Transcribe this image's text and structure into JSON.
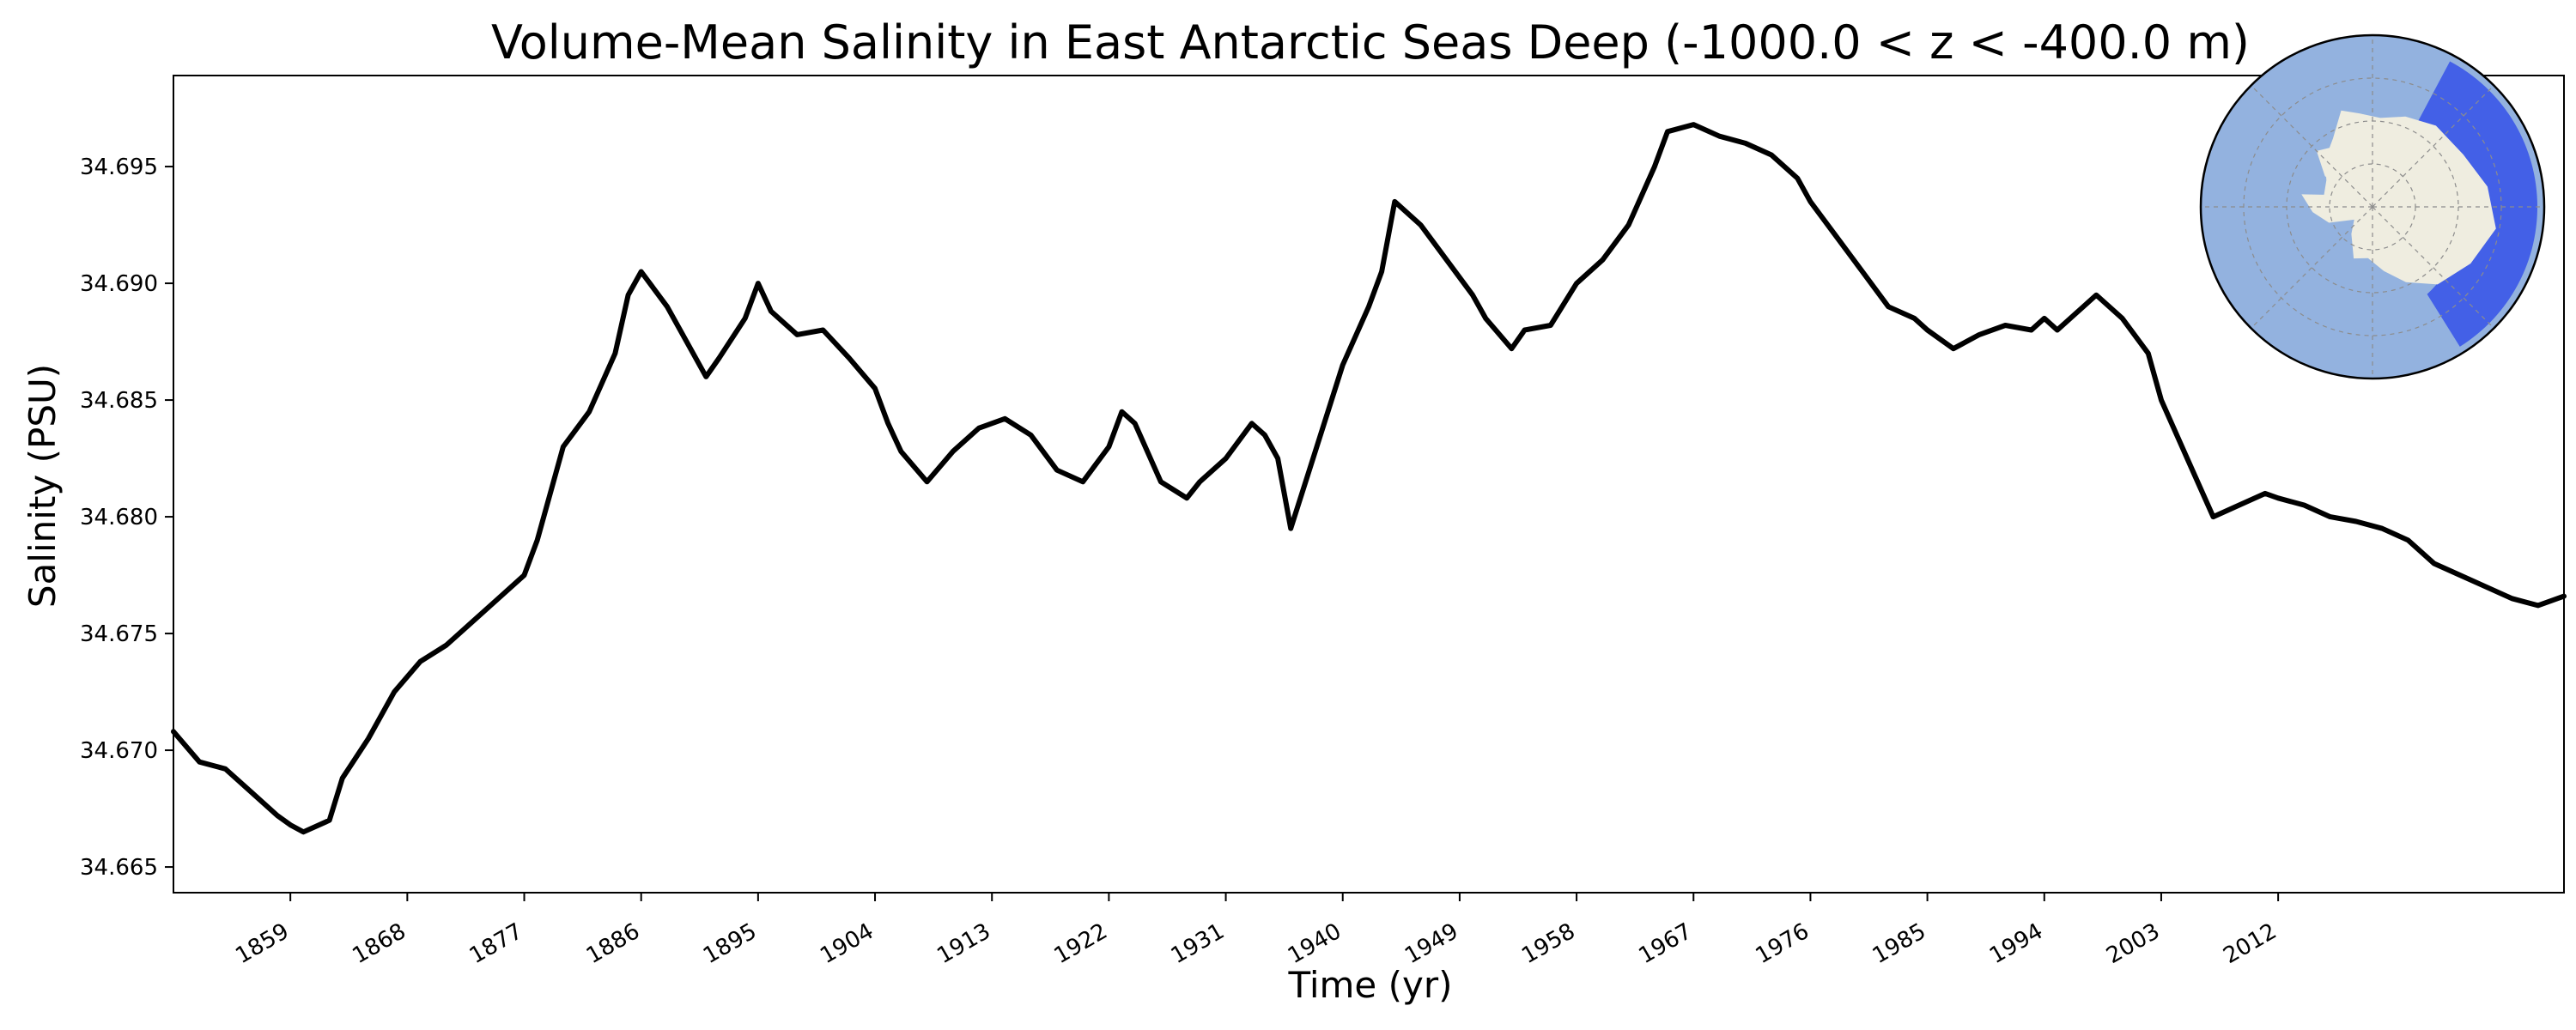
{
  "chart_data": {
    "type": "line",
    "title": "Volume-Mean Salinity in East Antarctic Seas Deep (-1000.0 < z < -400.0 m)",
    "xlabel": "Time (yr)",
    "ylabel": "Salinity (PSU)",
    "xlim": [
      1850,
      2034
    ],
    "ylim": [
      34.6639,
      34.6989
    ],
    "x_ticks": [
      1859,
      1868,
      1877,
      1886,
      1895,
      1904,
      1913,
      1922,
      1931,
      1940,
      1949,
      1958,
      1967,
      1976,
      1985,
      1994,
      2003,
      2012
    ],
    "y_ticks": [
      34.665,
      34.67,
      34.675,
      34.68,
      34.685,
      34.69,
      34.695
    ],
    "y_tick_labels": [
      "34.665",
      "34.670",
      "34.675",
      "34.680",
      "34.685",
      "34.690",
      "34.695"
    ],
    "grid": false,
    "legend": "none",
    "series": [
      {
        "color": "#000000",
        "x": [
          1850,
          1852,
          1854,
          1856,
          1858,
          1859,
          1860,
          1862,
          1863,
          1865,
          1867,
          1869,
          1871,
          1873,
          1875,
          1877,
          1878,
          1880,
          1882,
          1884,
          1885,
          1886,
          1888,
          1890,
          1891,
          1892,
          1894,
          1895,
          1896,
          1898,
          1900,
          1902,
          1904,
          1905,
          1906,
          1908,
          1910,
          1912,
          1914,
          1916,
          1918,
          1920,
          1922,
          1923,
          1924,
          1926,
          1928,
          1929,
          1931,
          1933,
          1934,
          1935,
          1936,
          1938,
          1940,
          1942,
          1943,
          1944,
          1946,
          1948,
          1950,
          1951,
          1953,
          1954,
          1956,
          1958,
          1960,
          1962,
          1964,
          1965,
          1967,
          1969,
          1971,
          1973,
          1975,
          1976,
          1978,
          1980,
          1982,
          1984,
          1985,
          1987,
          1989,
          1991,
          1993,
          1994,
          1995,
          1997,
          1998,
          2000,
          2002,
          2003,
          2005,
          2007,
          2009,
          2011,
          2012,
          2014,
          2016,
          2018,
          2020,
          2022,
          2024,
          2026,
          2028,
          2030,
          2032,
          2034
        ],
        "y": [
          34.6708,
          34.6695,
          34.6692,
          34.6682,
          34.6672,
          34.6668,
          34.6665,
          34.667,
          34.6688,
          34.6705,
          34.6725,
          34.6738,
          34.6745,
          34.6755,
          34.6765,
          34.6775,
          34.679,
          34.683,
          34.6845,
          34.687,
          34.6895,
          34.6905,
          34.689,
          34.687,
          34.686,
          34.6868,
          34.6885,
          34.69,
          34.6888,
          34.6878,
          34.688,
          34.6868,
          34.6855,
          34.684,
          34.6828,
          34.6815,
          34.6828,
          34.6838,
          34.6842,
          34.6835,
          34.682,
          34.6815,
          34.683,
          34.6845,
          34.684,
          34.6815,
          34.6808,
          34.6815,
          34.6825,
          34.684,
          34.6835,
          34.6825,
          34.6795,
          34.683,
          34.6865,
          34.689,
          34.6905,
          34.6935,
          34.6925,
          34.691,
          34.6895,
          34.6885,
          34.6872,
          34.688,
          34.6882,
          34.69,
          34.691,
          34.6925,
          34.695,
          34.6965,
          34.6968,
          34.6963,
          34.696,
          34.6955,
          34.6945,
          34.6935,
          34.692,
          34.6905,
          34.689,
          34.6885,
          34.688,
          34.6872,
          34.6878,
          34.6882,
          34.688,
          34.6885,
          34.688,
          34.689,
          34.6895,
          34.6885,
          34.687,
          34.685,
          34.6825,
          34.68,
          34.6805,
          34.681,
          34.6808,
          34.6805,
          34.68,
          34.6798,
          34.6795,
          34.679,
          34.678,
          34.6775,
          34.677,
          34.6765,
          34.6762,
          34.6766
        ]
      }
    ],
    "inset_map": {
      "projection": "south-polar-stereographic",
      "ocean_color": "#93b2df",
      "land_color": "#efede0",
      "region_color": "#3b56e8",
      "region": "East Antarctic Seas"
    }
  }
}
